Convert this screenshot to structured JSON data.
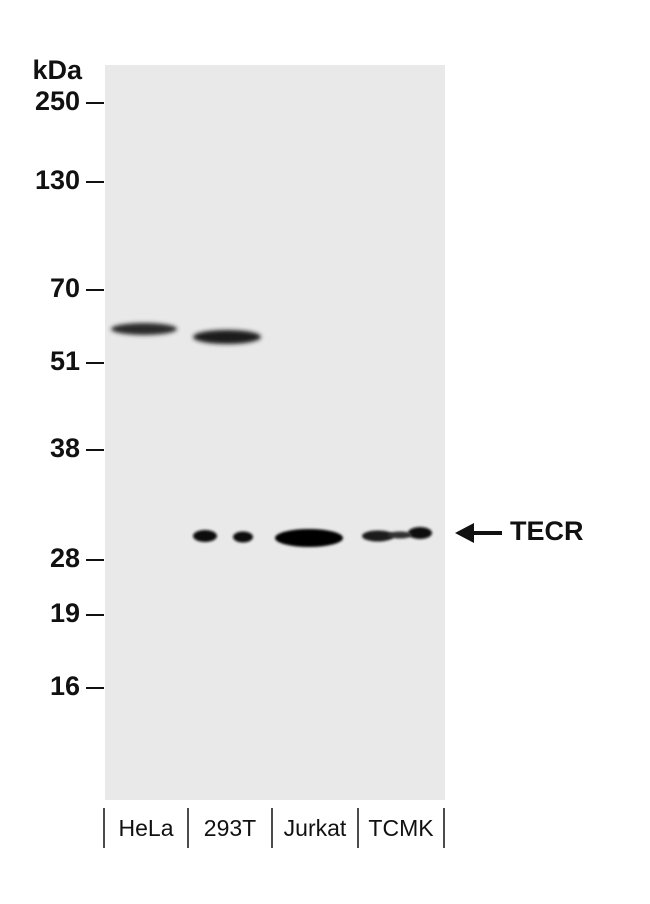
{
  "kda_label": "kDa",
  "markers": [
    "250",
    "130",
    "70",
    "51",
    "38",
    "28",
    "19",
    "16"
  ],
  "lanes": [
    "HeLa",
    "293T",
    "Jurkat",
    "TCMK"
  ],
  "target": "TECR"
}
